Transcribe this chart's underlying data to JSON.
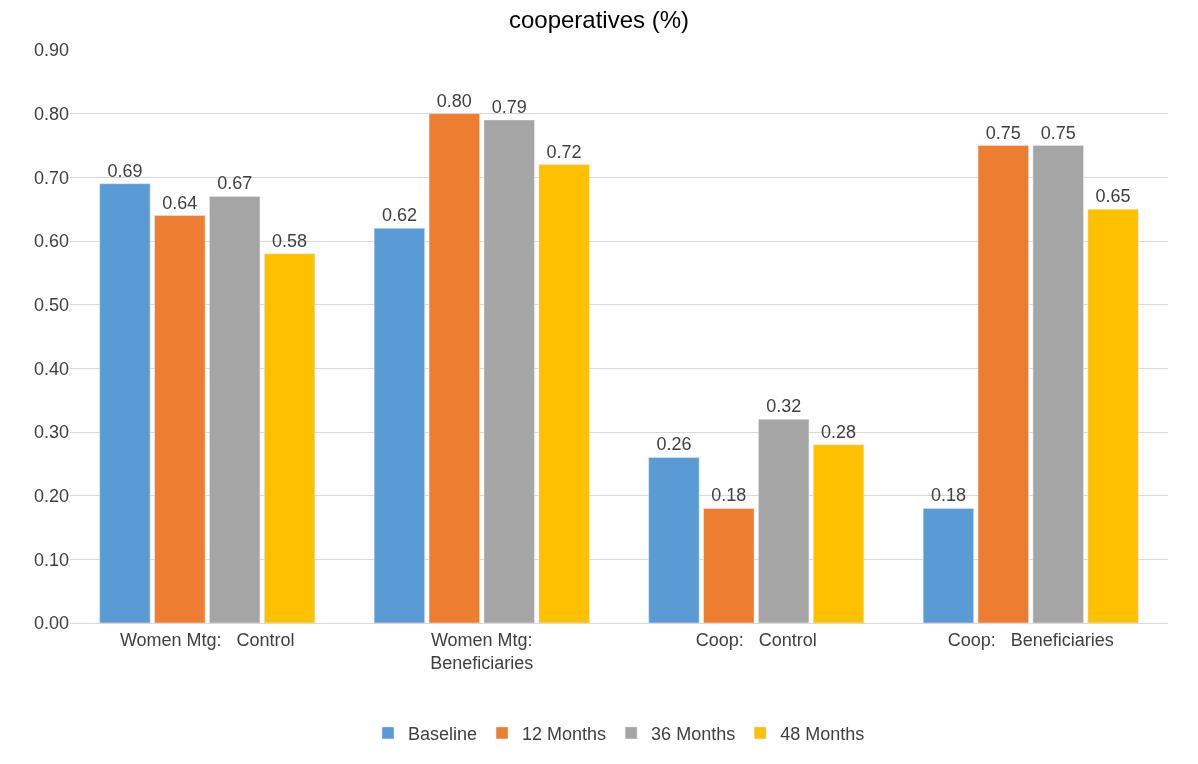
{
  "chart_data": {
    "type": "bar",
    "title": "cooperatives (%)",
    "categories": [
      "Women Mtg:   Control",
      "Women Mtg:\nBeneficiaries",
      "Coop:   Control",
      "Coop:   Beneficiaries"
    ],
    "series": [
      {
        "name": "Baseline",
        "color": "#5b9bd5",
        "values": [
          0.69,
          0.62,
          0.26,
          0.18
        ],
        "value_labels": [
          "0.69",
          "0.62",
          "0.26",
          "0.18"
        ]
      },
      {
        "name": "12 Months",
        "color": "#ed7d31",
        "values": [
          0.64,
          0.8,
          0.18,
          0.75
        ],
        "value_labels": [
          "0.64",
          "0.80",
          "0.18",
          "0.75"
        ]
      },
      {
        "name": "36 Months",
        "color": "#a5a5a5",
        "values": [
          0.67,
          0.79,
          0.32,
          0.75
        ],
        "value_labels": [
          "0.67",
          "0.79",
          "0.32",
          "0.75"
        ]
      },
      {
        "name": "48 Months",
        "color": "#ffc000",
        "values": [
          0.58,
          0.72,
          0.28,
          0.65
        ],
        "value_labels": [
          "0.58",
          "0.72",
          "0.28",
          "0.65"
        ]
      }
    ],
    "ylim": [
      0,
      0.9
    ],
    "yticks": [
      {
        "value": 0,
        "label": "0.00"
      },
      {
        "value": 0.1,
        "label": "0.10"
      },
      {
        "value": 0.2,
        "label": "0.20"
      },
      {
        "value": 0.3,
        "label": "0.30"
      },
      {
        "value": 0.4,
        "label": "0.40"
      },
      {
        "value": 0.5,
        "label": "0.50"
      },
      {
        "value": 0.6,
        "label": "0.60"
      },
      {
        "value": 0.7,
        "label": "0.70"
      },
      {
        "value": 0.8,
        "label": "0.80"
      },
      {
        "value": 0.9,
        "label": "0.90"
      }
    ],
    "grid": "y",
    "legend": "bottom"
  }
}
